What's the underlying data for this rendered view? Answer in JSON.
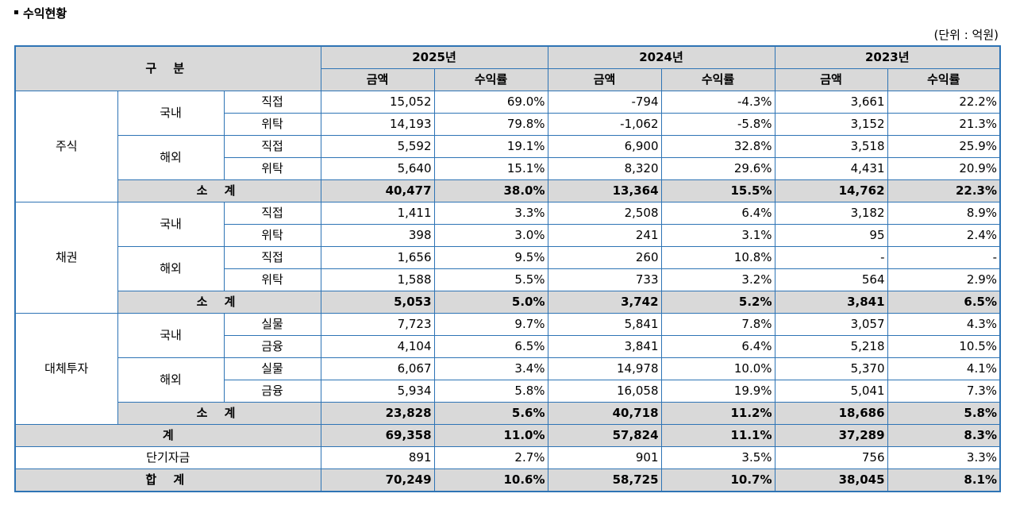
{
  "title": "수익현황",
  "unit": "(단위 : 억원)",
  "header": {
    "category": "구  분",
    "years": [
      "2025년",
      "2024년",
      "2023년"
    ],
    "amount": "금액",
    "rate": "수익률"
  },
  "rows": {
    "stock": {
      "label": "주식",
      "domestic": "국내",
      "overseas": "해외",
      "d_direct": {
        "label": "직접",
        "v": [
          "15,052",
          "69.0%",
          "-794",
          "-4.3%",
          "3,661",
          "22.2%"
        ]
      },
      "d_trust": {
        "label": "위탁",
        "v": [
          "14,193",
          "79.8%",
          "-1,062",
          "-5.8%",
          "3,152",
          "21.3%"
        ]
      },
      "o_direct": {
        "label": "직접",
        "v": [
          "5,592",
          "19.1%",
          "6,900",
          "32.8%",
          "3,518",
          "25.9%"
        ]
      },
      "o_trust": {
        "label": "위탁",
        "v": [
          "5,640",
          "15.1%",
          "8,320",
          "29.6%",
          "4,431",
          "20.9%"
        ]
      },
      "subtotal": {
        "label": "소  계",
        "v": [
          "40,477",
          "38.0%",
          "13,364",
          "15.5%",
          "14,762",
          "22.3%"
        ]
      }
    },
    "bond": {
      "label": "채권",
      "domestic": "국내",
      "overseas": "해외",
      "d_direct": {
        "label": "직접",
        "v": [
          "1,411",
          "3.3%",
          "2,508",
          "6.4%",
          "3,182",
          "8.9%"
        ]
      },
      "d_trust": {
        "label": "위탁",
        "v": [
          "398",
          "3.0%",
          "241",
          "3.1%",
          "95",
          "2.4%"
        ]
      },
      "o_direct": {
        "label": "직접",
        "v": [
          "1,656",
          "9.5%",
          "260",
          "10.8%",
          "-",
          "-"
        ]
      },
      "o_trust": {
        "label": "위탁",
        "v": [
          "1,588",
          "5.5%",
          "733",
          "3.2%",
          "564",
          "2.9%"
        ]
      },
      "subtotal": {
        "label": "소  계",
        "v": [
          "5,053",
          "5.0%",
          "3,742",
          "5.2%",
          "3,841",
          "6.5%"
        ]
      }
    },
    "alt": {
      "label": "대체투자",
      "domestic": "국내",
      "overseas": "해외",
      "d_direct": {
        "label": "실물",
        "v": [
          "7,723",
          "9.7%",
          "5,841",
          "7.8%",
          "3,057",
          "4.3%"
        ]
      },
      "d_trust": {
        "label": "금융",
        "v": [
          "4,104",
          "6.5%",
          "3,841",
          "6.4%",
          "5,218",
          "10.5%"
        ]
      },
      "o_direct": {
        "label": "실물",
        "v": [
          "6,067",
          "3.4%",
          "14,978",
          "10.0%",
          "5,370",
          "4.1%"
        ]
      },
      "o_trust": {
        "label": "금융",
        "v": [
          "5,934",
          "5.8%",
          "16,058",
          "19.9%",
          "5,041",
          "7.3%"
        ]
      },
      "subtotal": {
        "label": "소  계",
        "v": [
          "23,828",
          "5.6%",
          "40,718",
          "11.2%",
          "18,686",
          "5.8%"
        ]
      }
    },
    "total": {
      "label": "계",
      "v": [
        "69,358",
        "11.0%",
        "57,824",
        "11.1%",
        "37,289",
        "8.3%"
      ]
    },
    "short_term": {
      "label": "단기자금",
      "v": [
        "891",
        "2.7%",
        "901",
        "3.5%",
        "756",
        "3.3%"
      ]
    },
    "grand_total": {
      "label": "합  계",
      "v": [
        "70,249",
        "10.6%",
        "58,725",
        "10.7%",
        "38,045",
        "8.1%"
      ]
    }
  }
}
